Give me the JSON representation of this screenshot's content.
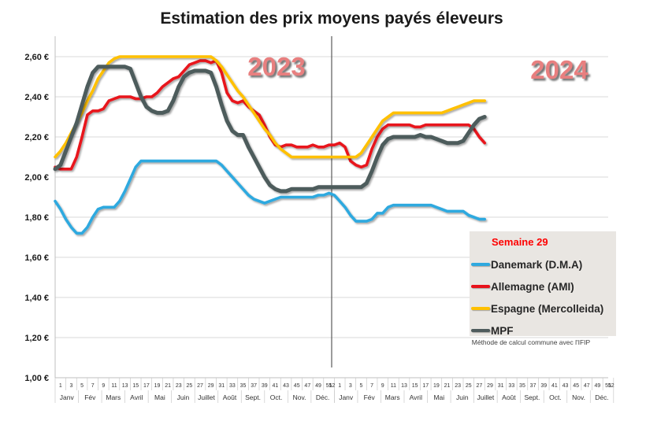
{
  "chart_data": {
    "type": "line",
    "title": "Estimation des prix moyens payés éleveurs",
    "unit": "€",
    "y_axis": {
      "min": 1.0,
      "max": 2.6,
      "step": 0.2,
      "tick_values": [
        2.6,
        2.4,
        2.2,
        2.0,
        1.8,
        1.6,
        1.4,
        1.2,
        1.0
      ],
      "tick_labels": [
        "2,60 €",
        "2,40 €",
        "2,20 €",
        "2,00 €",
        "1,80 €",
        "1,60 €",
        "1,40 €",
        "1,20 €",
        "1,00 €"
      ]
    },
    "x_axis": {
      "years": [
        "2023",
        "2024"
      ],
      "weeks_2023": 52,
      "weeks_2024": 29,
      "week_labels": [
        "1",
        "3",
        "5",
        "7",
        "9",
        "11",
        "13",
        "15",
        "17",
        "19",
        "21",
        "23",
        "25",
        "27",
        "29",
        "31",
        "33",
        "35",
        "37",
        "39",
        "41",
        "43",
        "45",
        "47",
        "49",
        "51",
        "52"
      ],
      "month_labels": [
        "Janv",
        "Fév",
        "Mars",
        "Avril",
        "Mai",
        "Juin",
        "Juillet",
        "Août",
        "Sept.",
        "Oct.",
        "Nov.",
        "Déc."
      ]
    },
    "annotations": {
      "year_2023": "2023",
      "year_2024": "2024"
    },
    "legend": {
      "header": "Semaine 29",
      "note": "Méthode de calcul commune avec l'IFIP"
    },
    "colors": {
      "grid": "#d9d9d9",
      "axis": "#bfbfbf",
      "tick": "#c9c9c9",
      "divider": "#595959",
      "year_label": "#e87f7f",
      "legend_bg": "#e9e6e2",
      "legend_header": "#fe0000"
    },
    "series": [
      {
        "name": "Danemark (D.M.A)",
        "color": "#2fa9df",
        "width": 3.6,
        "values": [
          1.88,
          1.84,
          1.79,
          1.75,
          1.72,
          1.72,
          1.75,
          1.8,
          1.84,
          1.85,
          1.85,
          1.85,
          1.88,
          1.93,
          1.99,
          2.05,
          2.08,
          2.08,
          2.08,
          2.08,
          2.08,
          2.08,
          2.08,
          2.08,
          2.08,
          2.08,
          2.08,
          2.08,
          2.08,
          2.08,
          2.08,
          2.06,
          2.03,
          2.0,
          1.97,
          1.94,
          1.91,
          1.89,
          1.88,
          1.87,
          1.88,
          1.89,
          1.9,
          1.9,
          1.9,
          1.9,
          1.9,
          1.9,
          1.9,
          1.91,
          1.91,
          1.92,
          1.91,
          1.88,
          1.85,
          1.81,
          1.78,
          1.78,
          1.78,
          1.79,
          1.82,
          1.82,
          1.85,
          1.86,
          1.86,
          1.86,
          1.86,
          1.86,
          1.86,
          1.86,
          1.86,
          1.85,
          1.84,
          1.83,
          1.83,
          1.83,
          1.83,
          1.81,
          1.8,
          1.79,
          1.79
        ]
      },
      {
        "name": "Allemagne (AMI)",
        "color": "#e8121b",
        "width": 3.6,
        "values": [
          2.05,
          2.04,
          2.04,
          2.04,
          2.1,
          2.2,
          2.31,
          2.33,
          2.33,
          2.34,
          2.38,
          2.39,
          2.4,
          2.4,
          2.4,
          2.39,
          2.39,
          2.4,
          2.4,
          2.42,
          2.45,
          2.47,
          2.49,
          2.5,
          2.53,
          2.56,
          2.57,
          2.58,
          2.58,
          2.57,
          2.58,
          2.52,
          2.42,
          2.38,
          2.37,
          2.38,
          2.35,
          2.33,
          2.31,
          2.26,
          2.2,
          2.16,
          2.15,
          2.16,
          2.16,
          2.15,
          2.15,
          2.15,
          2.16,
          2.15,
          2.15,
          2.16,
          2.16,
          2.17,
          2.15,
          2.08,
          2.06,
          2.05,
          2.06,
          2.14,
          2.2,
          2.24,
          2.26,
          2.26,
          2.26,
          2.26,
          2.26,
          2.25,
          2.25,
          2.26,
          2.26,
          2.26,
          2.26,
          2.26,
          2.26,
          2.26,
          2.26,
          2.26,
          2.24,
          2.2,
          2.17
        ]
      },
      {
        "name": "Espagne (Mercolleida)",
        "color": "#ffc000",
        "width": 3.6,
        "values": [
          2.1,
          2.13,
          2.17,
          2.22,
          2.27,
          2.32,
          2.38,
          2.43,
          2.49,
          2.53,
          2.57,
          2.59,
          2.6,
          2.6,
          2.6,
          2.6,
          2.6,
          2.6,
          2.6,
          2.6,
          2.6,
          2.6,
          2.6,
          2.6,
          2.6,
          2.6,
          2.6,
          2.6,
          2.6,
          2.6,
          2.58,
          2.55,
          2.51,
          2.47,
          2.43,
          2.4,
          2.36,
          2.32,
          2.28,
          2.24,
          2.21,
          2.17,
          2.14,
          2.12,
          2.1,
          2.1,
          2.1,
          2.1,
          2.1,
          2.1,
          2.1,
          2.1,
          2.1,
          2.1,
          2.1,
          2.1,
          2.1,
          2.12,
          2.16,
          2.2,
          2.24,
          2.28,
          2.3,
          2.32,
          2.32,
          2.32,
          2.32,
          2.32,
          2.32,
          2.32,
          2.32,
          2.32,
          2.32,
          2.33,
          2.34,
          2.35,
          2.36,
          2.37,
          2.38,
          2.38,
          2.38
        ]
      },
      {
        "name": "MPF",
        "color": "#4e5b5c",
        "width": 5,
        "values": [
          2.04,
          2.06,
          2.13,
          2.2,
          2.27,
          2.36,
          2.45,
          2.52,
          2.55,
          2.55,
          2.55,
          2.55,
          2.55,
          2.55,
          2.54,
          2.47,
          2.4,
          2.35,
          2.33,
          2.32,
          2.32,
          2.33,
          2.38,
          2.45,
          2.5,
          2.52,
          2.53,
          2.53,
          2.53,
          2.52,
          2.45,
          2.36,
          2.28,
          2.23,
          2.21,
          2.21,
          2.15,
          2.1,
          2.05,
          2.0,
          1.96,
          1.94,
          1.93,
          1.93,
          1.94,
          1.94,
          1.94,
          1.94,
          1.94,
          1.95,
          1.95,
          1.95,
          1.95,
          1.95,
          1.95,
          1.95,
          1.95,
          1.95,
          1.97,
          2.03,
          2.1,
          2.16,
          2.19,
          2.2,
          2.2,
          2.2,
          2.2,
          2.2,
          2.21,
          2.2,
          2.2,
          2.19,
          2.18,
          2.17,
          2.17,
          2.17,
          2.18,
          2.22,
          2.26,
          2.29,
          2.3
        ]
      }
    ]
  }
}
